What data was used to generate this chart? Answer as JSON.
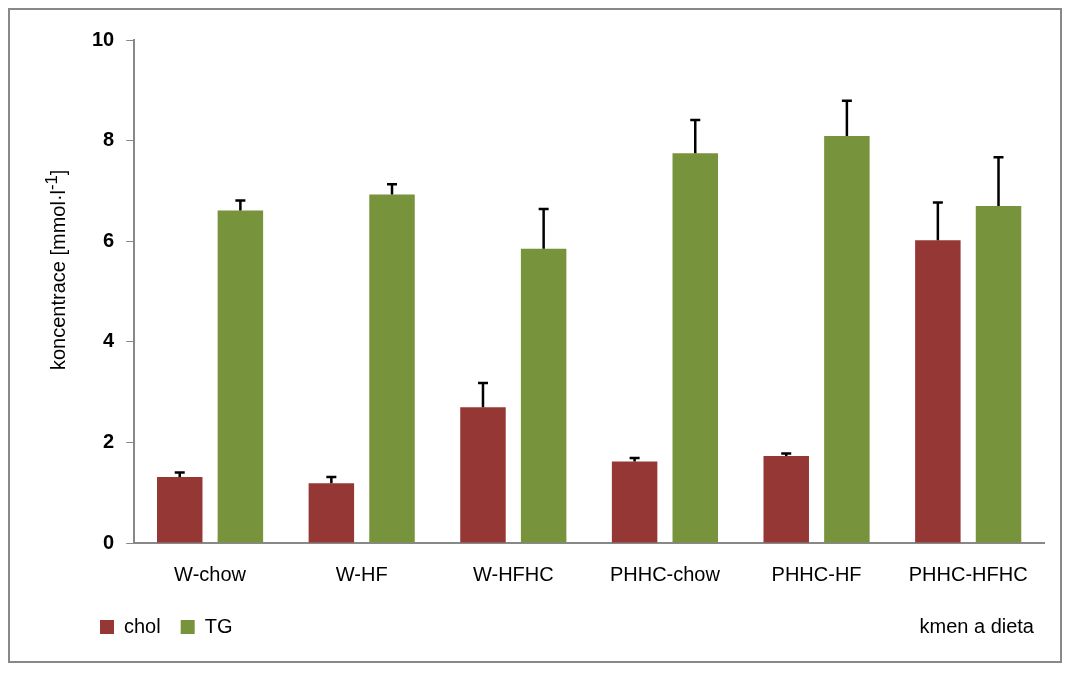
{
  "chart_data": {
    "type": "bar",
    "ylabel": "koncentrace [mmol·l$^{-1}$]",
    "xlabel": "kmen a dieta",
    "categories": [
      "W-chow",
      "W-HF",
      "W-HFHC",
      "PHHC-chow",
      "PHHC-HF",
      "PHHC-HFHC"
    ],
    "series": [
      {
        "name": "chol",
        "color": "#953735",
        "values": [
          1.31,
          1.19,
          2.7,
          1.62,
          1.73,
          6.02
        ],
        "errors": [
          [
            1.31,
            1.4
          ],
          [
            1.19,
            1.31
          ],
          [
            2.7,
            3.18
          ],
          [
            1.62,
            1.69
          ],
          [
            1.73,
            1.78
          ],
          [
            6.02,
            6.77
          ]
        ]
      },
      {
        "name": "TG",
        "color": "#77933c",
        "values": [
          6.61,
          6.93,
          5.85,
          7.75,
          8.09,
          6.7
        ],
        "errors": [
          [
            6.61,
            6.81
          ],
          [
            6.93,
            7.13
          ],
          [
            5.85,
            6.64
          ],
          [
            7.75,
            8.41
          ],
          [
            8.09,
            8.79
          ],
          [
            6.7,
            7.67
          ]
        ]
      }
    ],
    "ylim": [
      0,
      10
    ],
    "yticks": [
      0,
      2,
      4,
      6,
      8,
      10
    ],
    "grid": false,
    "legend": "bottom left"
  }
}
